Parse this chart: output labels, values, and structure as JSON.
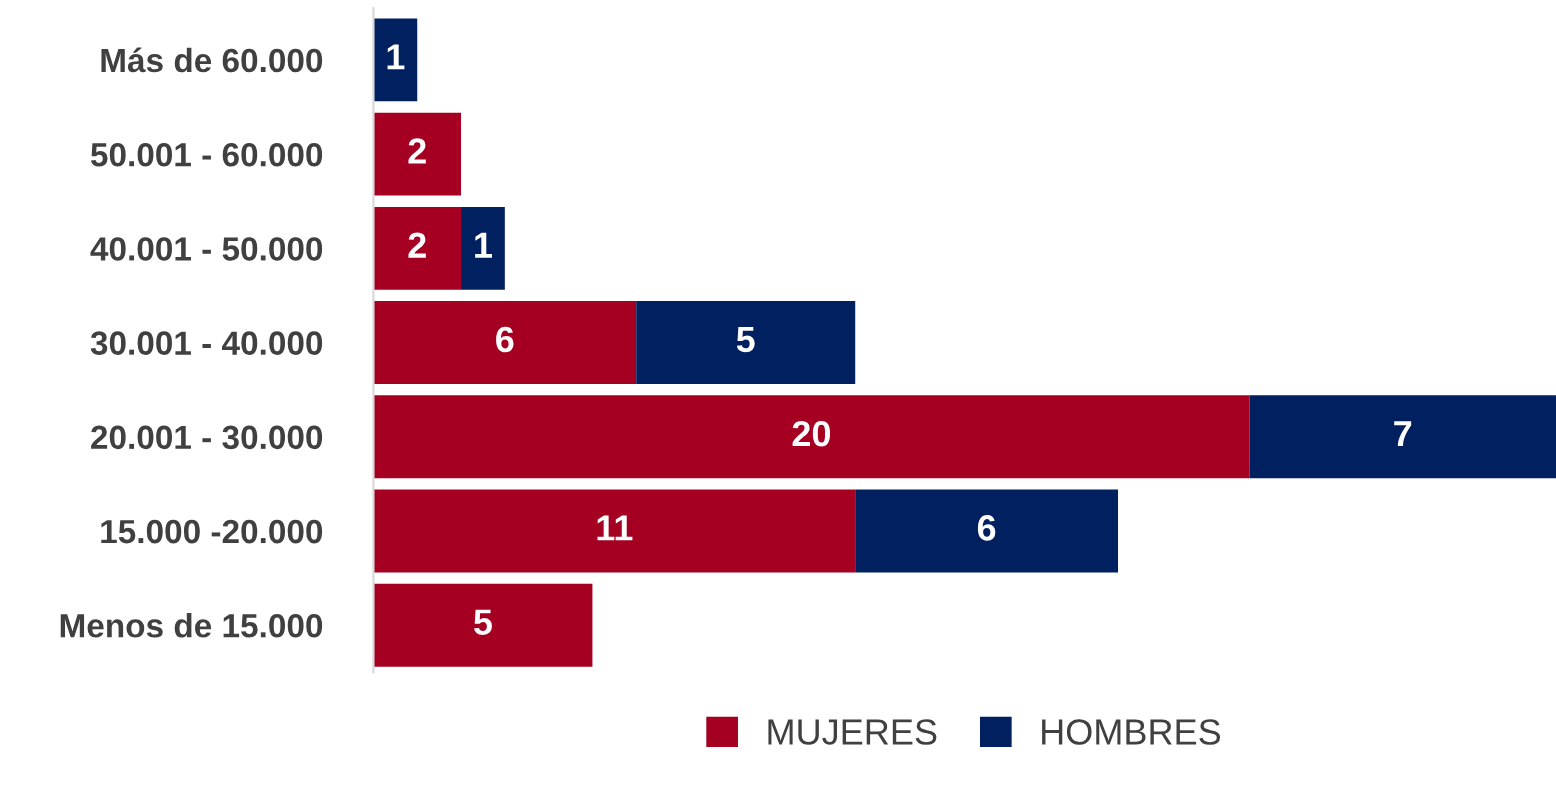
{
  "chart_data": {
    "type": "bar",
    "orientation": "horizontal",
    "stacked": true,
    "data_labels": true,
    "legend": "bottom",
    "grid": false,
    "tick_labels": "y",
    "categories": [
      "Más de 60.000",
      "50.001 - 60.000",
      "40.001 - 50.000",
      "30.001 - 40.000",
      "20.001 - 30.000",
      "15.000 -20.000",
      "Menos de 15.000"
    ],
    "series": [
      {
        "name": "MUJERES",
        "color": "#a50021",
        "values": [
          null,
          2,
          2,
          6,
          20,
          11,
          5
        ]
      },
      {
        "name": "HOMBRES",
        "color": "#002060",
        "values": [
          1,
          null,
          1,
          5,
          7,
          6,
          null
        ]
      }
    ]
  }
}
